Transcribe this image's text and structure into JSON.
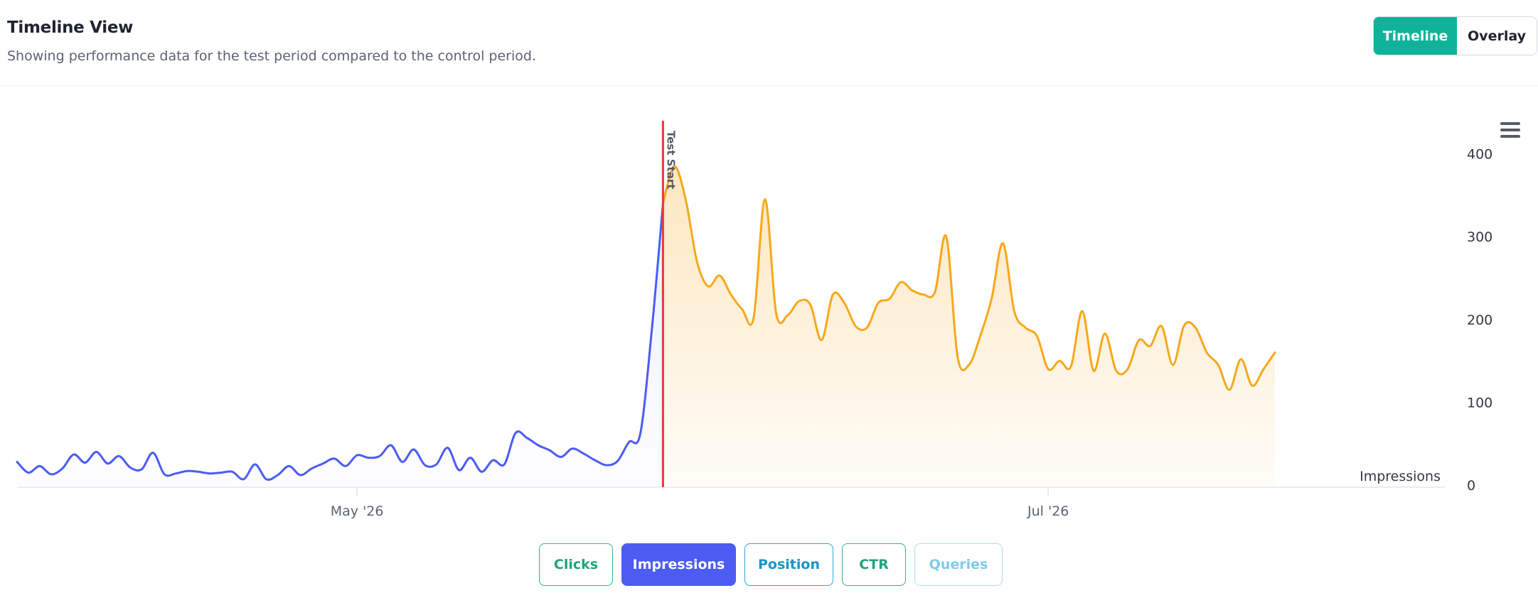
{
  "header": {
    "title": "Timeline View",
    "subtitle": "Showing performance data for the test period compared to the control period."
  },
  "view_toggle": {
    "options": [
      "Timeline",
      "Overlay"
    ],
    "selected": "Timeline"
  },
  "menu": {
    "icon": "hamburger-menu-icon"
  },
  "metrics": {
    "buttons": [
      "Clicks",
      "Impressions",
      "Position",
      "CTR",
      "Queries"
    ],
    "selected": "Impressions"
  },
  "colors": {
    "control_line": "#4c5cf2",
    "test_line": "#f7a81b",
    "test_start_line": "#e03b3b",
    "accent_green": "#10b39a"
  },
  "chart_data": {
    "type": "area",
    "ylabel": "Impressions",
    "y_axis_position": "right",
    "ylim": [
      0,
      440
    ],
    "y_ticks": [
      0,
      100,
      200,
      300,
      400
    ],
    "x_ticks": [
      {
        "label": "May '26",
        "date": "2026-05-01"
      },
      {
        "label": "Jul '26",
        "date": "2026-07-01"
      }
    ],
    "xlim": [
      "2026-04-01",
      "2026-08-05"
    ],
    "annotation": {
      "label": "Test Start",
      "date": "2026-05-28"
    },
    "grid": false,
    "series": [
      {
        "role": "control",
        "values": [
          [
            "2026-04-01",
            28
          ],
          [
            "2026-04-02",
            15
          ],
          [
            "2026-04-03",
            23
          ],
          [
            "2026-04-04",
            13
          ],
          [
            "2026-04-05",
            20
          ],
          [
            "2026-04-06",
            37
          ],
          [
            "2026-04-07",
            27
          ],
          [
            "2026-04-08",
            40
          ],
          [
            "2026-04-09",
            26
          ],
          [
            "2026-04-10",
            35
          ],
          [
            "2026-04-11",
            21
          ],
          [
            "2026-04-12",
            19
          ],
          [
            "2026-04-13",
            39
          ],
          [
            "2026-04-14",
            13
          ],
          [
            "2026-04-15",
            14
          ],
          [
            "2026-04-16",
            17
          ],
          [
            "2026-04-17",
            16
          ],
          [
            "2026-04-18",
            14
          ],
          [
            "2026-04-19",
            15
          ],
          [
            "2026-04-20",
            16
          ],
          [
            "2026-04-21",
            7
          ],
          [
            "2026-04-22",
            25
          ],
          [
            "2026-04-23",
            7
          ],
          [
            "2026-04-24",
            12
          ],
          [
            "2026-04-25",
            23
          ],
          [
            "2026-04-26",
            12
          ],
          [
            "2026-04-27",
            20
          ],
          [
            "2026-04-28",
            26
          ],
          [
            "2026-04-29",
            32
          ],
          [
            "2026-04-30",
            23
          ],
          [
            "2026-05-01",
            36
          ],
          [
            "2026-05-02",
            33
          ],
          [
            "2026-05-03",
            35
          ],
          [
            "2026-05-04",
            48
          ],
          [
            "2026-05-05",
            28
          ],
          [
            "2026-05-06",
            43
          ],
          [
            "2026-05-07",
            24
          ],
          [
            "2026-05-08",
            25
          ],
          [
            "2026-05-09",
            45
          ],
          [
            "2026-05-10",
            18
          ],
          [
            "2026-05-11",
            33
          ],
          [
            "2026-05-12",
            16
          ],
          [
            "2026-05-13",
            30
          ],
          [
            "2026-05-14",
            25
          ],
          [
            "2026-05-15",
            63
          ],
          [
            "2026-05-16",
            57
          ],
          [
            "2026-05-17",
            48
          ],
          [
            "2026-05-18",
            42
          ],
          [
            "2026-05-19",
            34
          ],
          [
            "2026-05-20",
            44
          ],
          [
            "2026-05-21",
            38
          ],
          [
            "2026-05-22",
            30
          ],
          [
            "2026-05-23",
            24
          ],
          [
            "2026-05-24",
            29
          ],
          [
            "2026-05-25",
            52
          ],
          [
            "2026-05-26",
            62
          ],
          [
            "2026-05-27",
            185
          ],
          [
            "2026-05-28",
            340
          ]
        ]
      },
      {
        "role": "test",
        "values": [
          [
            "2026-05-28",
            340
          ],
          [
            "2026-05-29",
            385
          ],
          [
            "2026-05-30",
            345
          ],
          [
            "2026-05-31",
            270
          ],
          [
            "2026-06-01",
            240
          ],
          [
            "2026-06-02",
            253
          ],
          [
            "2026-06-03",
            230
          ],
          [
            "2026-06-04",
            212
          ],
          [
            "2026-06-05",
            202
          ],
          [
            "2026-06-06",
            345
          ],
          [
            "2026-06-07",
            207
          ],
          [
            "2026-06-08",
            205
          ],
          [
            "2026-06-09",
            222
          ],
          [
            "2026-06-10",
            218
          ],
          [
            "2026-06-11",
            175
          ],
          [
            "2026-06-12",
            230
          ],
          [
            "2026-06-13",
            220
          ],
          [
            "2026-06-14",
            192
          ],
          [
            "2026-06-15",
            190
          ],
          [
            "2026-06-16",
            220
          ],
          [
            "2026-06-17",
            225
          ],
          [
            "2026-06-18",
            245
          ],
          [
            "2026-06-19",
            235
          ],
          [
            "2026-06-20",
            230
          ],
          [
            "2026-06-21",
            233
          ],
          [
            "2026-06-22",
            300
          ],
          [
            "2026-06-23",
            155
          ],
          [
            "2026-06-24",
            145
          ],
          [
            "2026-06-25",
            180
          ],
          [
            "2026-06-26",
            225
          ],
          [
            "2026-06-27",
            292
          ],
          [
            "2026-06-28",
            210
          ],
          [
            "2026-06-29",
            190
          ],
          [
            "2026-06-30",
            180
          ],
          [
            "2026-07-01",
            140
          ],
          [
            "2026-07-02",
            150
          ],
          [
            "2026-07-03",
            143
          ],
          [
            "2026-07-04",
            210
          ],
          [
            "2026-07-05",
            138
          ],
          [
            "2026-07-06",
            183
          ],
          [
            "2026-07-07",
            138
          ],
          [
            "2026-07-08",
            140
          ],
          [
            "2026-07-09",
            175
          ],
          [
            "2026-07-10",
            168
          ],
          [
            "2026-07-11",
            192
          ],
          [
            "2026-07-12",
            145
          ],
          [
            "2026-07-13",
            193
          ],
          [
            "2026-07-14",
            190
          ],
          [
            "2026-07-15",
            160
          ],
          [
            "2026-07-16",
            145
          ],
          [
            "2026-07-17",
            115
          ],
          [
            "2026-07-18",
            152
          ],
          [
            "2026-07-19",
            120
          ],
          [
            "2026-07-20",
            140
          ],
          [
            "2026-07-21",
            160
          ]
        ]
      }
    ]
  }
}
